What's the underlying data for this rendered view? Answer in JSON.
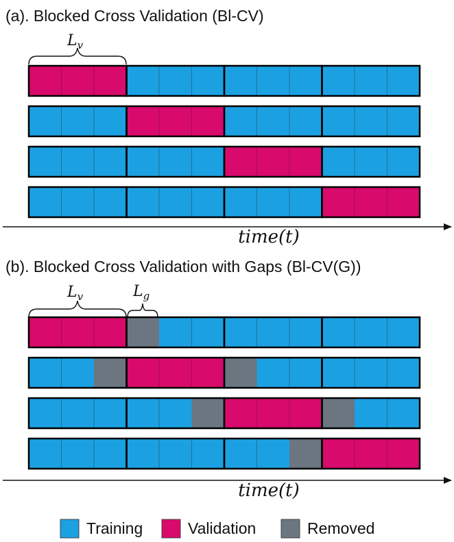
{
  "colors": {
    "training": "#1ba1e2",
    "validation": "#d80a6c",
    "removed": "#6b7681",
    "block_border": "#000000",
    "cell_divider": "#1f6f9e"
  },
  "panel_a": {
    "title": "(a). Blocked Cross Validation (Bl-CV)",
    "brace_label": "L",
    "brace_label_sub": "v",
    "axis_label": "time(t)",
    "folds": [
      [
        "V",
        "V",
        "V",
        "T",
        "T",
        "T",
        "T",
        "T",
        "T",
        "T",
        "T",
        "T"
      ],
      [
        "T",
        "T",
        "T",
        "V",
        "V",
        "V",
        "T",
        "T",
        "T",
        "T",
        "T",
        "T"
      ],
      [
        "T",
        "T",
        "T",
        "T",
        "T",
        "T",
        "V",
        "V",
        "V",
        "T",
        "T",
        "T"
      ],
      [
        "T",
        "T",
        "T",
        "T",
        "T",
        "T",
        "T",
        "T",
        "T",
        "V",
        "V",
        "V"
      ]
    ]
  },
  "panel_b": {
    "title": "(b). Blocked Cross Validation with Gaps (Bl-CV(G))",
    "brace_label": "L",
    "brace_label_sub": "v",
    "gap_label": "L",
    "gap_label_sub": "g",
    "axis_label": "time(t)",
    "folds": [
      [
        "V",
        "V",
        "V",
        "R",
        "T",
        "T",
        "T",
        "T",
        "T",
        "T",
        "T",
        "T"
      ],
      [
        "T",
        "T",
        "R",
        "V",
        "V",
        "V",
        "R",
        "T",
        "T",
        "T",
        "T",
        "T"
      ],
      [
        "T",
        "T",
        "T",
        "T",
        "T",
        "R",
        "V",
        "V",
        "V",
        "R",
        "T",
        "T"
      ],
      [
        "T",
        "T",
        "T",
        "T",
        "T",
        "T",
        "T",
        "T",
        "R",
        "V",
        "V",
        "V"
      ]
    ]
  },
  "legend": {
    "items": [
      {
        "key": "T",
        "label": "Training",
        "color": "#1ba1e2"
      },
      {
        "key": "V",
        "label": "Validation",
        "color": "#d80a6c"
      },
      {
        "key": "R",
        "label": "Removed",
        "color": "#6b7681"
      }
    ]
  }
}
